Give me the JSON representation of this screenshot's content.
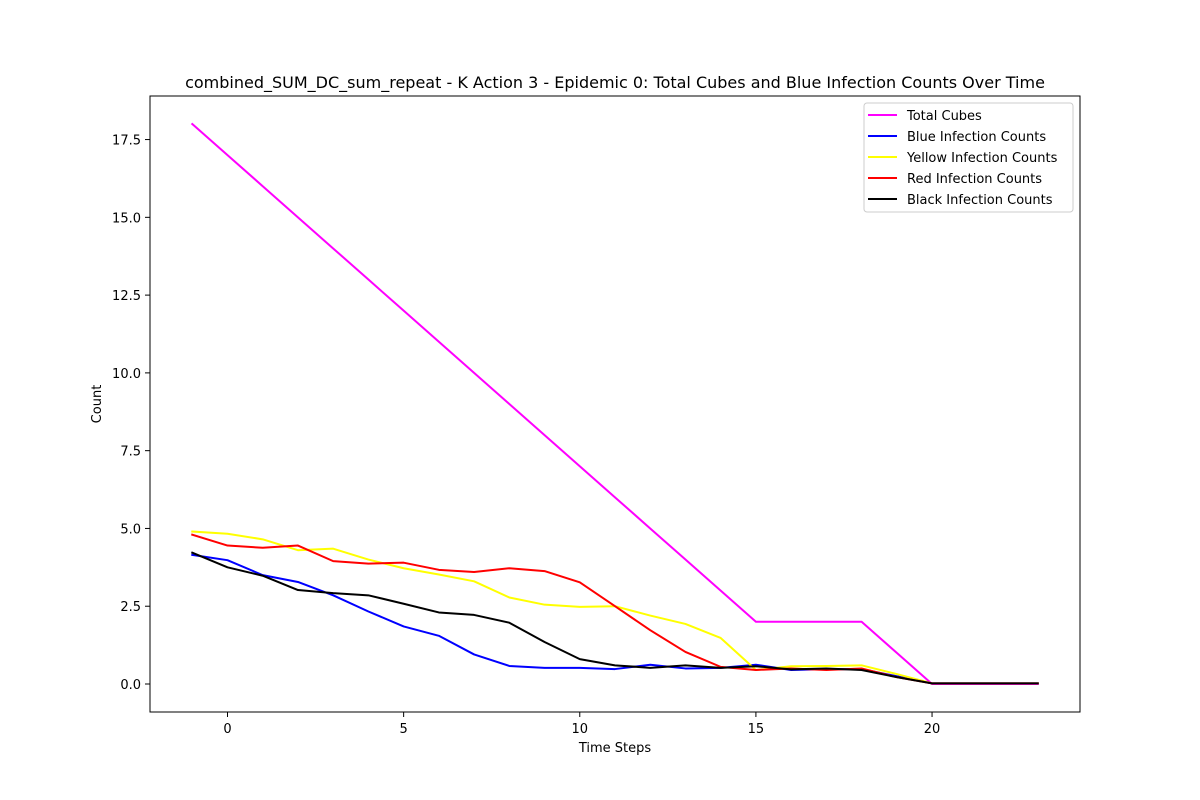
{
  "chart_data": {
    "type": "line",
    "title": "combined_SUM_DC_sum_repeat - K Action 3 - Epidemic 0: Total Cubes and Blue Infection Counts Over Time",
    "xlabel": "Time Steps",
    "ylabel": "Count",
    "xlim": [
      -2.2,
      24.2
    ],
    "ylim": [
      -0.9,
      18.9
    ],
    "xticks": [
      0,
      5,
      10,
      15,
      20
    ],
    "xtick_labels": [
      "0",
      "5",
      "10",
      "15",
      "20"
    ],
    "yticks": [
      0,
      2.5,
      5,
      7.5,
      10,
      12.5,
      15,
      17.5
    ],
    "ytick_labels": [
      "0.0",
      "2.5",
      "5.0",
      "7.5",
      "10.0",
      "12.5",
      "15.0",
      "17.5"
    ],
    "grid": false,
    "legend_position": "top-right",
    "x": [
      -1,
      0,
      1,
      2,
      3,
      4,
      5,
      6,
      7,
      8,
      9,
      10,
      11,
      12,
      13,
      14,
      15,
      16,
      17,
      18,
      19,
      20,
      21,
      22,
      23
    ],
    "series": [
      {
        "name": "Total Cubes",
        "color": "#ff00ff",
        "values": [
          18,
          17,
          16,
          15,
          14,
          13,
          12,
          11,
          10,
          9,
          8,
          7,
          6,
          5,
          4,
          3,
          2,
          2,
          2,
          2,
          1,
          0,
          0,
          0,
          0
        ]
      },
      {
        "name": "Blue Infection Counts",
        "color": "#0000ff",
        "values": [
          4.15,
          3.98,
          3.5,
          3.28,
          2.85,
          2.33,
          1.85,
          1.55,
          0.95,
          0.58,
          0.52,
          0.52,
          0.48,
          0.62,
          0.5,
          0.52,
          0.62,
          0.45,
          0.48,
          0.48,
          0.25,
          0.02,
          0.02,
          0.02,
          0.02
        ]
      },
      {
        "name": "Yellow Infection Counts",
        "color": "#ffff00",
        "values": [
          4.9,
          4.83,
          4.65,
          4.3,
          4.35,
          4.0,
          3.72,
          3.52,
          3.3,
          2.78,
          2.55,
          2.48,
          2.5,
          2.2,
          1.93,
          1.48,
          0.45,
          0.57,
          0.58,
          0.6,
          0.32,
          0.02,
          0.02,
          0.02,
          0.02
        ]
      },
      {
        "name": "Red Infection Counts",
        "color": "#ff0000",
        "values": [
          4.8,
          4.45,
          4.38,
          4.45,
          3.95,
          3.87,
          3.9,
          3.67,
          3.6,
          3.72,
          3.63,
          3.27,
          2.5,
          1.73,
          1.03,
          0.55,
          0.45,
          0.5,
          0.45,
          0.5,
          0.22,
          0.02,
          0.02,
          0.02,
          0.02
        ]
      },
      {
        "name": "Black Infection Counts",
        "color": "#000000",
        "values": [
          4.22,
          3.75,
          3.48,
          3.02,
          2.92,
          2.85,
          2.58,
          2.3,
          2.22,
          1.97,
          1.35,
          0.8,
          0.6,
          0.52,
          0.6,
          0.52,
          0.57,
          0.47,
          0.5,
          0.45,
          0.22,
          0.02,
          0.02,
          0.02,
          0.02
        ]
      }
    ]
  }
}
